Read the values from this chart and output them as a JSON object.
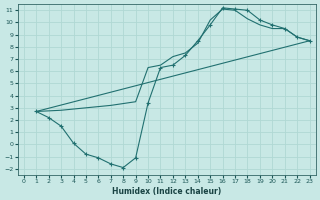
{
  "xlabel": "Humidex (Indice chaleur)",
  "bg_color": "#c8e8e5",
  "grid_color": "#b0d8d4",
  "line_color": "#217070",
  "xlim": [
    -0.5,
    23.5
  ],
  "ylim": [
    -2.5,
    11.5
  ],
  "xticks": [
    0,
    1,
    2,
    3,
    4,
    5,
    6,
    7,
    8,
    9,
    10,
    11,
    12,
    13,
    14,
    15,
    16,
    17,
    18,
    19,
    20,
    21,
    22,
    23
  ],
  "yticks": [
    -2,
    -1,
    0,
    1,
    2,
    3,
    4,
    5,
    6,
    7,
    8,
    9,
    10,
    11
  ],
  "curve1_x": [
    1,
    2,
    3,
    4,
    5,
    6,
    7,
    8,
    9,
    10,
    11,
    12,
    13,
    14,
    15,
    16,
    17,
    18,
    19,
    20,
    21,
    22,
    23
  ],
  "curve1_y": [
    2.7,
    2.2,
    1.5,
    0.1,
    -0.8,
    -1.1,
    -1.6,
    -1.9,
    -1.1,
    3.4,
    6.3,
    6.5,
    7.3,
    8.5,
    9.8,
    11.2,
    11.1,
    11.0,
    10.2,
    9.8,
    9.5,
    8.8,
    8.5
  ],
  "curve2_x": [
    1,
    3,
    5,
    7,
    9,
    10,
    11,
    12,
    13,
    14,
    15,
    16,
    17,
    18,
    19,
    20,
    21,
    22,
    23
  ],
  "curve2_y": [
    2.7,
    2.8,
    3.0,
    3.2,
    3.5,
    6.3,
    6.5,
    7.2,
    7.5,
    8.3,
    10.2,
    11.1,
    11.0,
    10.3,
    9.8,
    9.5,
    9.5,
    8.8,
    8.5
  ],
  "curve3_x": [
    1,
    23
  ],
  "curve3_y": [
    2.7,
    8.5
  ],
  "marker_x1": [
    1,
    2,
    3,
    4,
    5,
    6,
    7,
    8,
    9,
    10,
    11,
    12,
    13,
    14,
    15,
    16,
    17,
    18,
    19,
    20,
    21,
    22,
    23
  ],
  "marker_y1": [
    2.7,
    2.2,
    1.5,
    0.1,
    -0.8,
    -1.1,
    -1.6,
    -1.9,
    -1.1,
    3.4,
    6.3,
    6.5,
    7.3,
    8.5,
    9.8,
    11.2,
    11.1,
    11.0,
    10.2,
    9.8,
    9.5,
    8.8,
    8.5
  ]
}
